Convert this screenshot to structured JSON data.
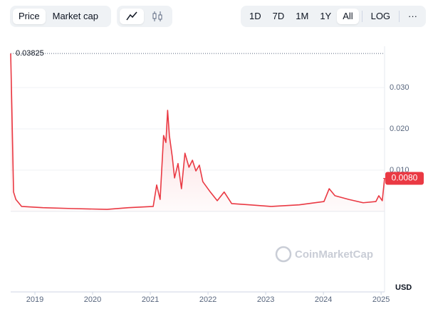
{
  "toolbar": {
    "tabs": [
      "Price",
      "Market cap"
    ],
    "ranges": [
      "1D",
      "7D",
      "1M",
      "1Y",
      "All"
    ],
    "log": "LOG",
    "more": "···"
  },
  "chart_data": {
    "type": "line",
    "color": "#ea3943",
    "x": [
      2018.58,
      2018.6,
      2018.63,
      2018.67,
      2018.77,
      2019.14,
      2019.63,
      2020.25,
      2020.62,
      2021.05,
      2021.11,
      2021.17,
      2021.23,
      2021.27,
      2021.3,
      2021.33,
      2021.38,
      2021.42,
      2021.48,
      2021.54,
      2021.6,
      2021.67,
      2021.73,
      2021.79,
      2021.85,
      2021.91,
      2022.04,
      2022.16,
      2022.28,
      2022.41,
      2022.72,
      2023.09,
      2023.58,
      2024.01,
      2024.1,
      2024.2,
      2024.44,
      2024.69,
      2024.91,
      2024.96,
      2025.02,
      2025.06
    ],
    "values": [
      0.03825,
      0.0253,
      0.0047,
      0.0029,
      0.0012,
      0.0009,
      0.0007,
      0.0005,
      0.0009,
      0.0012,
      0.0064,
      0.0029,
      0.0184,
      0.0167,
      0.0245,
      0.0184,
      0.0133,
      0.0081,
      0.0116,
      0.0055,
      0.0141,
      0.0107,
      0.0124,
      0.0098,
      0.0112,
      0.0072,
      0.0047,
      0.0026,
      0.0047,
      0.0019,
      0.0016,
      0.0012,
      0.0016,
      0.0024,
      0.0055,
      0.0038,
      0.0029,
      0.0021,
      0.0024,
      0.0038,
      0.0026,
      0.008
    ],
    "xlim": [
      2018.58,
      2025.06
    ],
    "xticks": [
      2019,
      2020,
      2021,
      2022,
      2023,
      2024,
      2025
    ],
    "ylim": [
      -0.0195,
      0.04
    ],
    "yticks": [
      {
        "value": 0.01,
        "label": "0.010"
      },
      {
        "value": 0.02,
        "label": "0.020"
      },
      {
        "value": 0.03,
        "label": "0.030"
      }
    ],
    "grid": true,
    "max_value": 0.03825,
    "current_price": {
      "value": 0.008,
      "label": "0.0080"
    },
    "currency": "USD",
    "watermark": "CoinMarketCap"
  }
}
